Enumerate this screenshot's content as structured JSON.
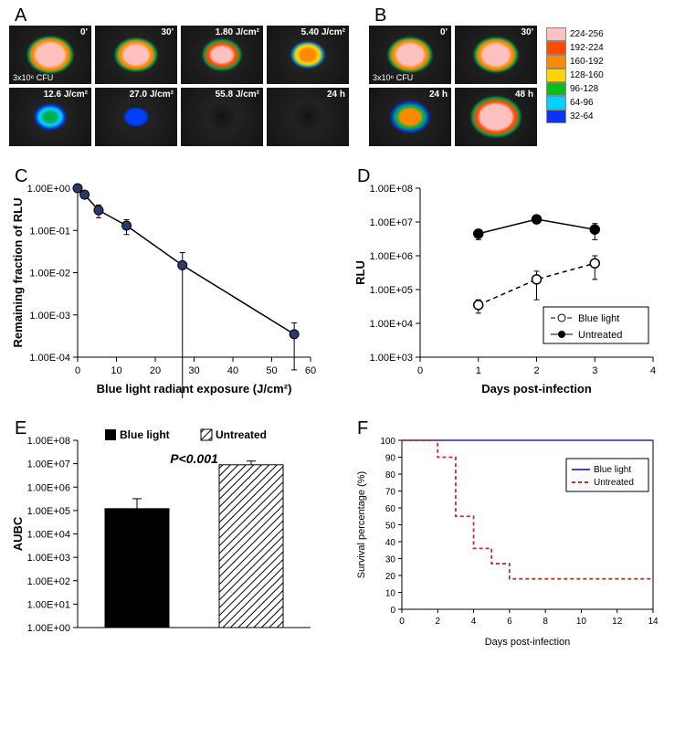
{
  "A": {
    "label": "A",
    "cfu_label": "3x10⁶ CFU",
    "cells": [
      {
        "label": "0'",
        "blob_color": "#ffc0c0",
        "blob_size": 34,
        "ring": "#ff8a00",
        "ring2": "#00b050"
      },
      {
        "label": "30'",
        "blob_color": "#ffc0c0",
        "blob_size": 30,
        "ring": "#ff8a00",
        "ring2": "#00b050"
      },
      {
        "label": "1.80 J/cm²",
        "blob_color": "#ffc0c0",
        "blob_size": 26,
        "ring": "#ff4d00",
        "ring2": "#00b050"
      },
      {
        "label": "5.40 J/cm²",
        "blob_color": "#ff8a00",
        "blob_size": 20,
        "ring": "#ffd400",
        "ring2": "#00a0ff"
      },
      {
        "label": "12.6 J/cm²",
        "blob_color": "#00b050",
        "blob_size": 18,
        "ring": "#00d0ff",
        "ring2": "#0040ff"
      },
      {
        "label": "27.0 J/cm²",
        "blob_color": "#0040ff",
        "blob_size": 10,
        "ring": "#0040ff",
        "ring2": "#0040ff"
      },
      {
        "label": "55.8 J/cm²",
        "blob_color": "none",
        "blob_size": 0,
        "ring": "none",
        "ring2": "none"
      },
      {
        "label": "24 h",
        "blob_color": "none",
        "blob_size": 0,
        "ring": "none",
        "ring2": "none"
      }
    ]
  },
  "B": {
    "label": "B",
    "cfu_label": "3x10⁶ CFU",
    "cells": [
      {
        "label": "0'",
        "blob_color": "#ffc0c0",
        "blob_size": 32,
        "ring": "#ff8a00",
        "ring2": "#00b050"
      },
      {
        "label": "30'",
        "blob_color": "#ffc0c0",
        "blob_size": 32,
        "ring": "#ff8a00",
        "ring2": "#00b050"
      },
      {
        "label": "24 h",
        "blob_color": "#ff8a00",
        "blob_size": 26,
        "ring": "#00b050",
        "ring2": "#0040ff"
      },
      {
        "label": "48 h",
        "blob_color": "#ffc0c0",
        "blob_size": 38,
        "ring": "#ff4d00",
        "ring2": "#00b050"
      }
    ],
    "colorscale": [
      {
        "hex": "#ffc0c0",
        "range": "224-256"
      },
      {
        "hex": "#ff4d00",
        "range": "192-224"
      },
      {
        "hex": "#ff8a00",
        "range": "160-192"
      },
      {
        "hex": "#ffd400",
        "range": "128-160"
      },
      {
        "hex": "#00c020",
        "range": "96-128"
      },
      {
        "hex": "#00d0ff",
        "range": "64-96"
      },
      {
        "hex": "#1030ff",
        "range": "32-64"
      }
    ]
  },
  "C": {
    "label": "C",
    "xlabel": "Blue light radiant exposure (J/cm²)",
    "ylabel": "Remaining fraction of RLU",
    "xlim": [
      0,
      60
    ],
    "xtick": 10,
    "ylim_exp": [
      -4,
      0
    ],
    "points": [
      {
        "x": 0,
        "y": 1.0,
        "err": 0
      },
      {
        "x": 1.8,
        "y": 0.7,
        "err": 0.05
      },
      {
        "x": 5.4,
        "y": 0.3,
        "err": 0.1
      },
      {
        "x": 12.6,
        "y": 0.13,
        "err": 0.05
      },
      {
        "x": 27.0,
        "y": 0.015,
        "err": 0.015
      },
      {
        "x": 55.8,
        "y": 0.00035,
        "err": 0.0003
      }
    ],
    "marker_color": "#2b3a6b",
    "line_color": "#000000"
  },
  "D": {
    "label": "D",
    "xlabel": "Days post-infection",
    "ylabel": "RLU",
    "xlim": [
      0,
      4
    ],
    "xtick": 1,
    "ylim_exp": [
      3,
      8
    ],
    "series": [
      {
        "name": "Blue light",
        "marker": "open",
        "dash": "5,4",
        "color": "#000000",
        "points": [
          {
            "x": 1,
            "y": 35000.0,
            "err": 15000.0
          },
          {
            "x": 2,
            "y": 200000.0,
            "err": 150000.0
          },
          {
            "x": 3,
            "y": 600000.0,
            "err": 400000.0
          }
        ]
      },
      {
        "name": "Untreated",
        "marker": "solid",
        "dash": "",
        "color": "#000000",
        "points": [
          {
            "x": 1,
            "y": 4500000.0,
            "err": 1500000.0
          },
          {
            "x": 2,
            "y": 12000000.0,
            "err": 3000000.0
          },
          {
            "x": 3,
            "y": 6000000.0,
            "err": 3000000.0
          }
        ]
      }
    ]
  },
  "E": {
    "label": "E",
    "ylabel": "AUBC",
    "ylim_exp": [
      0,
      8
    ],
    "p_label": "P<0.001",
    "bars": [
      {
        "name": "Blue light",
        "val": 120000.0,
        "err": 200000.0,
        "fill": "#000000",
        "pattern": "solid"
      },
      {
        "name": "Untreated",
        "val": 9000000.0,
        "err": 4000000.0,
        "fill": "#666666",
        "pattern": "hatch"
      }
    ]
  },
  "F": {
    "label": "F",
    "xlabel": "Days post-infection",
    "ylabel": "Survival percentage (%)",
    "xlim": [
      0,
      14
    ],
    "xtick": 2,
    "ylim": [
      0,
      100
    ],
    "ytick": 10,
    "series": [
      {
        "name": "Blue light",
        "color": "#3b4cc0",
        "dash": "",
        "steps": [
          [
            0,
            100
          ],
          [
            14,
            100
          ]
        ]
      },
      {
        "name": "Untreated",
        "color": "#c03030",
        "dash": "4,3",
        "steps": [
          [
            0,
            100
          ],
          [
            2,
            100
          ],
          [
            2,
            90
          ],
          [
            3,
            90
          ],
          [
            3,
            55
          ],
          [
            4,
            55
          ],
          [
            4,
            36
          ],
          [
            5,
            36
          ],
          [
            5,
            27
          ],
          [
            6,
            27
          ],
          [
            6,
            18
          ],
          [
            14,
            18
          ]
        ]
      }
    ]
  }
}
